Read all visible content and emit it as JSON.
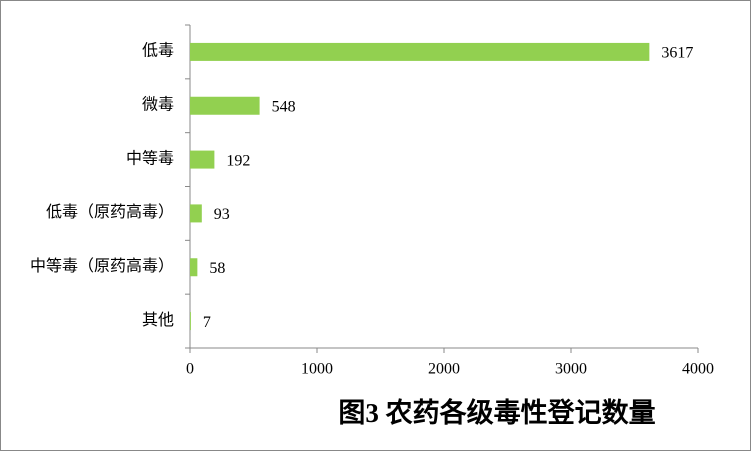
{
  "chart_data": {
    "type": "bar",
    "orientation": "horizontal",
    "title": "图3 农药各级毒性登记数量",
    "categories": [
      "低毒",
      "微毒",
      "中等毒",
      "低毒（原药高毒）",
      "中等毒（原药高毒）",
      "其他"
    ],
    "values": [
      3617,
      548,
      192,
      93,
      58,
      7
    ],
    "color": "#92d050",
    "xlim": [
      0,
      4000
    ],
    "xticks": [
      0,
      1000,
      2000,
      3000,
      4000
    ],
    "grid": false
  }
}
